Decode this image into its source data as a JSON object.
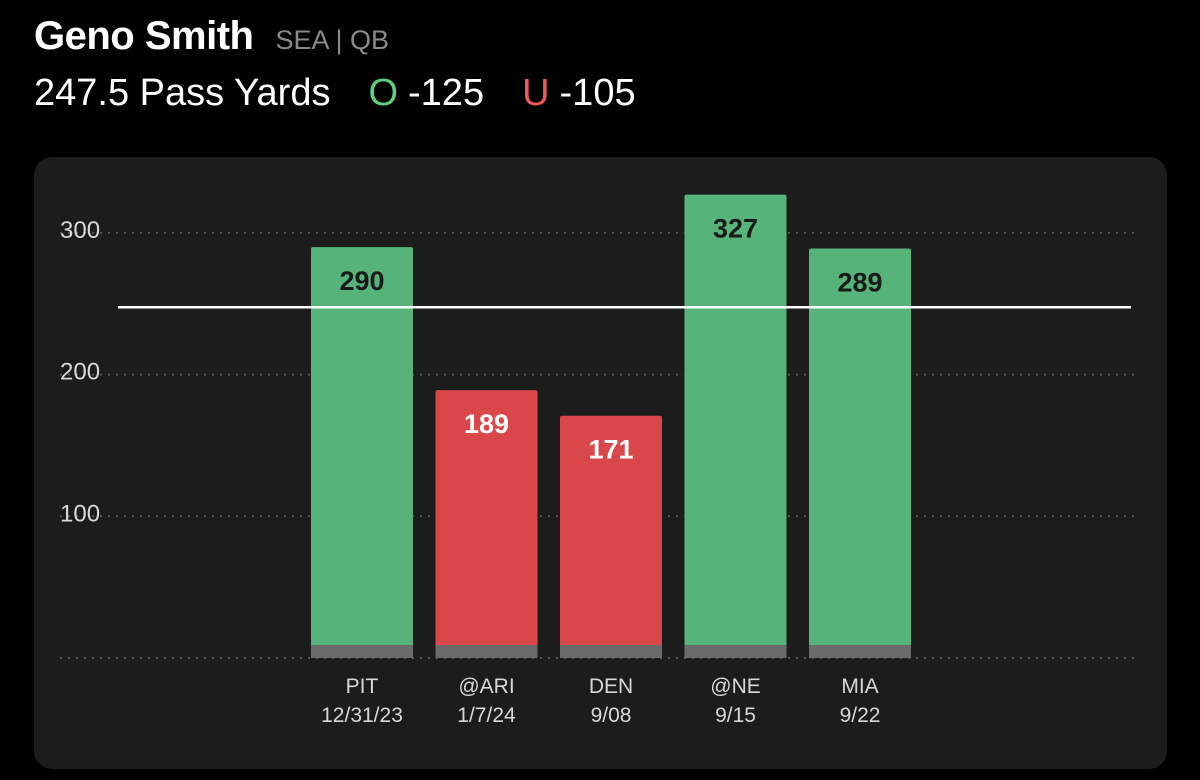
{
  "header": {
    "player_name": "Geno Smith",
    "team_position": "SEA | QB",
    "prop_line": "247.5 Pass Yards",
    "over_letter": "O",
    "over_odds": "-125",
    "under_letter": "U",
    "under_odds": "-105"
  },
  "colors": {
    "over": "#56b37a",
    "under": "#d9474b",
    "base": "#6b6b6b",
    "line": "#ffffff",
    "grid": "#555555"
  },
  "chart_data": {
    "type": "bar",
    "categories": [
      "PIT 12/31/23",
      "@ARI 1/7/24",
      "DEN 9/08",
      "@NE 9/15",
      "MIA 9/22"
    ],
    "opponents": [
      "PIT",
      "@ARI",
      "DEN",
      "@NE",
      "MIA"
    ],
    "dates": [
      "12/31/23",
      "1/7/24",
      "9/08",
      "9/15",
      "9/22"
    ],
    "values": [
      290,
      189,
      171,
      327,
      289
    ],
    "threshold": 247.5,
    "y_ticks": [
      100,
      200,
      300
    ],
    "ylim": [
      0,
      350
    ],
    "grid": true,
    "title": "",
    "xlabel": "",
    "ylabel": ""
  }
}
